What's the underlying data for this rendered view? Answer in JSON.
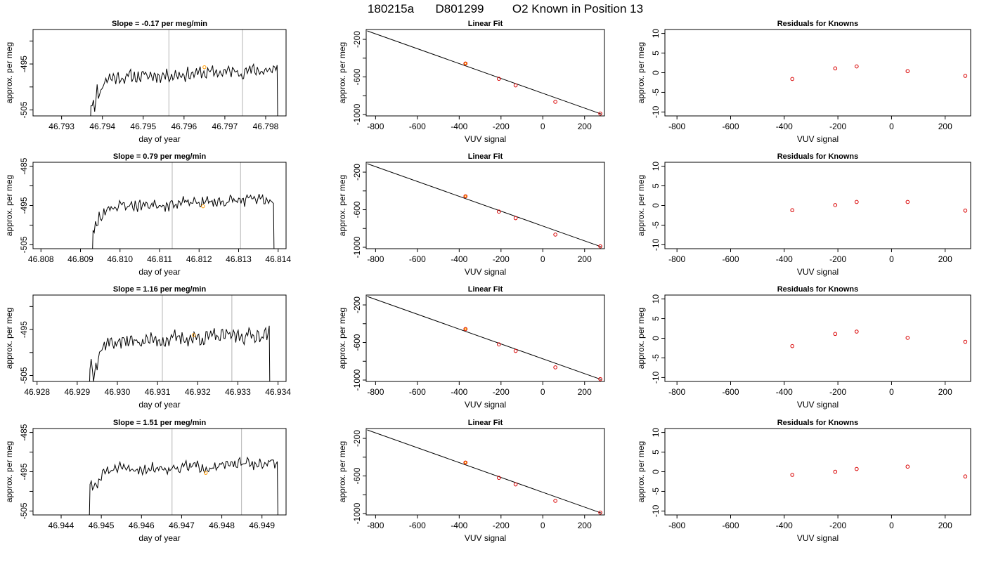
{
  "figure": {
    "title_parts": [
      "180215a",
      "D801299",
      "O2 Known in Position  13"
    ]
  },
  "colors": {
    "trace": "#000000",
    "gridline": "#c0c0c0",
    "known_point": "#d90000",
    "highlight_point": "#ff9900",
    "fit_line": "#000000"
  },
  "chart_data": [
    {
      "type": "line",
      "panel": "timeseries",
      "row": 1,
      "title": "Slope =  -0.17  per meg/min",
      "xlabel": "day of year",
      "ylabel": "approx. per meg",
      "xlim": [
        46.7923,
        46.7985
      ],
      "ylim": [
        -506.3,
        -487.5
      ],
      "xticks": [
        "46.793",
        "46.794",
        "46.795",
        "46.796",
        "46.797",
        "46.798"
      ],
      "yticks": [
        "-495",
        "-505"
      ],
      "ytick_values": [
        -495,
        -505
      ],
      "minor_yticks": [
        -490,
        -500
      ],
      "vlines": [
        46.79563,
        46.79743
      ],
      "highlight_point": {
        "x": 46.7965,
        "y": -495.7
      },
      "trace": {
        "x_start": 46.7937,
        "x_end": 46.7983,
        "baseline": -497.2,
        "amplitude": 1.8,
        "start_y": -510,
        "end_y": -512,
        "seed": 11
      }
    },
    {
      "type": "scatter",
      "panel": "fit",
      "row": 1,
      "title": "Linear Fit",
      "xlabel": "VUV signal",
      "ylabel": "approx. per meg",
      "xlim": [
        -845,
        295
      ],
      "ylim": [
        -1015,
        -95
      ],
      "xticks": [
        "-800",
        "-600",
        "-400",
        "-200",
        "0",
        "200"
      ],
      "xtick_values": [
        -800,
        -600,
        -400,
        -200,
        0,
        200
      ],
      "yticks": [
        "-200",
        "-600",
        "-1000"
      ],
      "ytick_values": [
        -200,
        -600,
        -1000
      ],
      "minor_yticks": [
        -400,
        -800
      ],
      "line": {
        "x": [
          -840,
          280
        ],
        "y": [
          -110,
          -995
        ]
      },
      "points": {
        "x": [
          -370,
          -210,
          -130,
          60,
          275
        ],
        "y": [
          -457,
          -620,
          -690,
          -865,
          -990
        ]
      },
      "highlight_index": 0
    },
    {
      "type": "scatter",
      "panel": "residuals",
      "row": 1,
      "title": "Residuals for Knowns",
      "xlabel": "VUV signal",
      "ylabel": "approx. per meg",
      "xlim": [
        -845,
        295
      ],
      "ylim": [
        -11,
        11
      ],
      "xticks": [
        "-800",
        "-600",
        "-400",
        "-200",
        "0",
        "200"
      ],
      "xtick_values": [
        -800,
        -600,
        -400,
        -200,
        0,
        200
      ],
      "yticks": [
        "10",
        "5",
        "0",
        "-5",
        "-10"
      ],
      "ytick_values": [
        10,
        5,
        0,
        -5,
        -10
      ],
      "points": {
        "x": [
          -370,
          -210,
          -130,
          60,
          275
        ],
        "y": [
          -1.6,
          1.1,
          1.6,
          0.4,
          -0.8
        ]
      }
    },
    {
      "type": "line",
      "panel": "timeseries",
      "row": 2,
      "title": "Slope =  0.79  per meg/min",
      "xlabel": "day of year",
      "ylabel": "approx. per meg",
      "xlim": [
        46.8078,
        46.8142
      ],
      "ylim": [
        -506,
        -484
      ],
      "xticks": [
        "46.808",
        "46.809",
        "46.810",
        "46.811",
        "46.812",
        "46.813",
        "46.814"
      ],
      "yticks": [
        "-485",
        "-495",
        "-505"
      ],
      "ytick_values": [
        -485,
        -495,
        -505
      ],
      "minor_yticks": [
        -490,
        -500
      ],
      "vlines": [
        46.81132,
        46.81305
      ],
      "highlight_point": {
        "x": 46.8121,
        "y": -495.2
      },
      "trace": {
        "x_start": 46.8093,
        "x_end": 46.8139,
        "baseline": -494.4,
        "amplitude": 2.0,
        "start_y": -508,
        "end_y": -510,
        "seed": 23
      }
    },
    {
      "type": "scatter",
      "panel": "fit",
      "row": 2,
      "title": "Linear Fit",
      "xlabel": "VUV signal",
      "ylabel": "approx. per meg",
      "xlim": [
        -845,
        295
      ],
      "ylim": [
        -1015,
        -95
      ],
      "xticks": [
        "-800",
        "-600",
        "-400",
        "-200",
        "0",
        "200"
      ],
      "xtick_values": [
        -800,
        -600,
        -400,
        -200,
        0,
        200
      ],
      "yticks": [
        "-200",
        "-600",
        "-1000"
      ],
      "ytick_values": [
        -200,
        -600,
        -1000
      ],
      "minor_yticks": [
        -400,
        -800
      ],
      "line": {
        "x": [
          -840,
          280
        ],
        "y": [
          -110,
          -995
        ]
      },
      "points": {
        "x": [
          -370,
          -210,
          -130,
          60,
          275
        ],
        "y": [
          -457,
          -620,
          -690,
          -865,
          -990
        ]
      },
      "highlight_index": 0
    },
    {
      "type": "scatter",
      "panel": "residuals",
      "row": 2,
      "title": "Residuals for Knowns",
      "xlabel": "VUV signal",
      "ylabel": "approx. per meg",
      "xlim": [
        -845,
        295
      ],
      "ylim": [
        -11,
        11
      ],
      "xticks": [
        "-800",
        "-600",
        "-400",
        "-200",
        "0",
        "200"
      ],
      "xtick_values": [
        -800,
        -600,
        -400,
        -200,
        0,
        200
      ],
      "yticks": [
        "10",
        "5",
        "0",
        "-5",
        "-10"
      ],
      "ytick_values": [
        10,
        5,
        0,
        -5,
        -10
      ],
      "points": {
        "x": [
          -370,
          -210,
          -130,
          60,
          275
        ],
        "y": [
          -1.2,
          0.1,
          0.9,
          0.9,
          -1.3
        ]
      }
    },
    {
      "type": "line",
      "panel": "timeseries",
      "row": 3,
      "title": "Slope =  1.16  per meg/min",
      "xlabel": "day of year",
      "ylabel": "approx. per meg",
      "xlim": [
        46.9279,
        46.9342
      ],
      "ylim": [
        -506.3,
        -487.5
      ],
      "xticks": [
        "46.928",
        "46.929",
        "46.930",
        "46.931",
        "46.932",
        "46.933",
        "46.934"
      ],
      "yticks": [
        "-495",
        "-505"
      ],
      "ytick_values": [
        -495,
        -505
      ],
      "minor_yticks": [
        -490,
        -500
      ],
      "vlines": [
        46.93112,
        46.93285
      ],
      "highlight_point": {
        "x": 46.9319,
        "y": -496.2
      },
      "trace": {
        "x_start": 46.9293,
        "x_end": 46.9338,
        "baseline": -497.0,
        "amplitude": 2.1,
        "start_y": -509,
        "end_y": -512,
        "seed": 37
      }
    },
    {
      "type": "scatter",
      "panel": "fit",
      "row": 3,
      "title": "Linear Fit",
      "xlabel": "VUV signal",
      "ylabel": "approx. per meg",
      "xlim": [
        -845,
        295
      ],
      "ylim": [
        -1015,
        -95
      ],
      "xticks": [
        "-800",
        "-600",
        "-400",
        "-200",
        "0",
        "200"
      ],
      "xtick_values": [
        -800,
        -600,
        -400,
        -200,
        0,
        200
      ],
      "yticks": [
        "-200",
        "-600",
        "-1000"
      ],
      "ytick_values": [
        -200,
        -600,
        -1000
      ],
      "minor_yticks": [
        -400,
        -800
      ],
      "line": {
        "x": [
          -840,
          280
        ],
        "y": [
          -110,
          -995
        ]
      },
      "points": {
        "x": [
          -370,
          -210,
          -130,
          60,
          275
        ],
        "y": [
          -457,
          -620,
          -690,
          -865,
          -990
        ]
      },
      "highlight_index": 0
    },
    {
      "type": "scatter",
      "panel": "residuals",
      "row": 3,
      "title": "Residuals for Knowns",
      "xlabel": "VUV signal",
      "ylabel": "approx. per meg",
      "xlim": [
        -845,
        295
      ],
      "ylim": [
        -11,
        11
      ],
      "xticks": [
        "-800",
        "-600",
        "-400",
        "-200",
        "0",
        "200"
      ],
      "xtick_values": [
        -800,
        -600,
        -400,
        -200,
        0,
        200
      ],
      "yticks": [
        "10",
        "5",
        "0",
        "-5",
        "-10"
      ],
      "ytick_values": [
        10,
        5,
        0,
        -5,
        -10
      ],
      "points": {
        "x": [
          -370,
          -210,
          -130,
          60,
          275
        ],
        "y": [
          -2.0,
          1.1,
          1.7,
          0.1,
          -0.9
        ]
      }
    },
    {
      "type": "line",
      "panel": "timeseries",
      "row": 4,
      "title": "Slope =  1.51  per meg/min",
      "xlabel": "day of year",
      "ylabel": "approx. per meg",
      "xlim": [
        46.9433,
        46.9496
      ],
      "ylim": [
        -506,
        -484
      ],
      "xticks": [
        "46.944",
        "46.945",
        "46.946",
        "46.947",
        "46.948",
        "46.949"
      ],
      "yticks": [
        "-485",
        "-495",
        "-505"
      ],
      "ytick_values": [
        -485,
        -495,
        -505
      ],
      "minor_yticks": [
        -490,
        -500
      ],
      "vlines": [
        46.94676,
        46.94849
      ],
      "highlight_point": {
        "x": 46.9476,
        "y": -495.3
      },
      "trace": {
        "x_start": 46.9447,
        "x_end": 46.9494,
        "baseline": -493.8,
        "amplitude": 1.9,
        "start_y": -508,
        "end_y": -510,
        "seed": 51
      }
    },
    {
      "type": "scatter",
      "panel": "fit",
      "row": 4,
      "title": "Linear Fit",
      "xlabel": "VUV signal",
      "ylabel": "approx. per meg",
      "xlim": [
        -845,
        295
      ],
      "ylim": [
        -1015,
        -95
      ],
      "xticks": [
        "-800",
        "-600",
        "-400",
        "-200",
        "0",
        "200"
      ],
      "xtick_values": [
        -800,
        -600,
        -400,
        -200,
        0,
        200
      ],
      "yticks": [
        "-200",
        "-600",
        "-1000"
      ],
      "ytick_values": [
        -200,
        -600,
        -1000
      ],
      "minor_yticks": [
        -400,
        -800
      ],
      "line": {
        "x": [
          -840,
          280
        ],
        "y": [
          -110,
          -995
        ]
      },
      "points": {
        "x": [
          -370,
          -210,
          -130,
          60,
          275
        ],
        "y": [
          -457,
          -620,
          -690,
          -865,
          -990
        ]
      },
      "highlight_index": 0
    },
    {
      "type": "scatter",
      "panel": "residuals",
      "row": 4,
      "title": "Residuals for Knowns",
      "xlabel": "VUV signal",
      "ylabel": "approx. per meg",
      "xlim": [
        -845,
        295
      ],
      "ylim": [
        -11,
        11
      ],
      "xticks": [
        "-800",
        "-600",
        "-400",
        "-200",
        "0",
        "200"
      ],
      "xtick_values": [
        -800,
        -600,
        -400,
        -200,
        0,
        200
      ],
      "yticks": [
        "10",
        "5",
        "0",
        "-5",
        "-10"
      ],
      "ytick_values": [
        10,
        5,
        0,
        -5,
        -10
      ],
      "points": {
        "x": [
          -370,
          -210,
          -130,
          60,
          275
        ],
        "y": [
          -0.8,
          0.0,
          0.7,
          1.3,
          -1.2
        ]
      }
    }
  ]
}
